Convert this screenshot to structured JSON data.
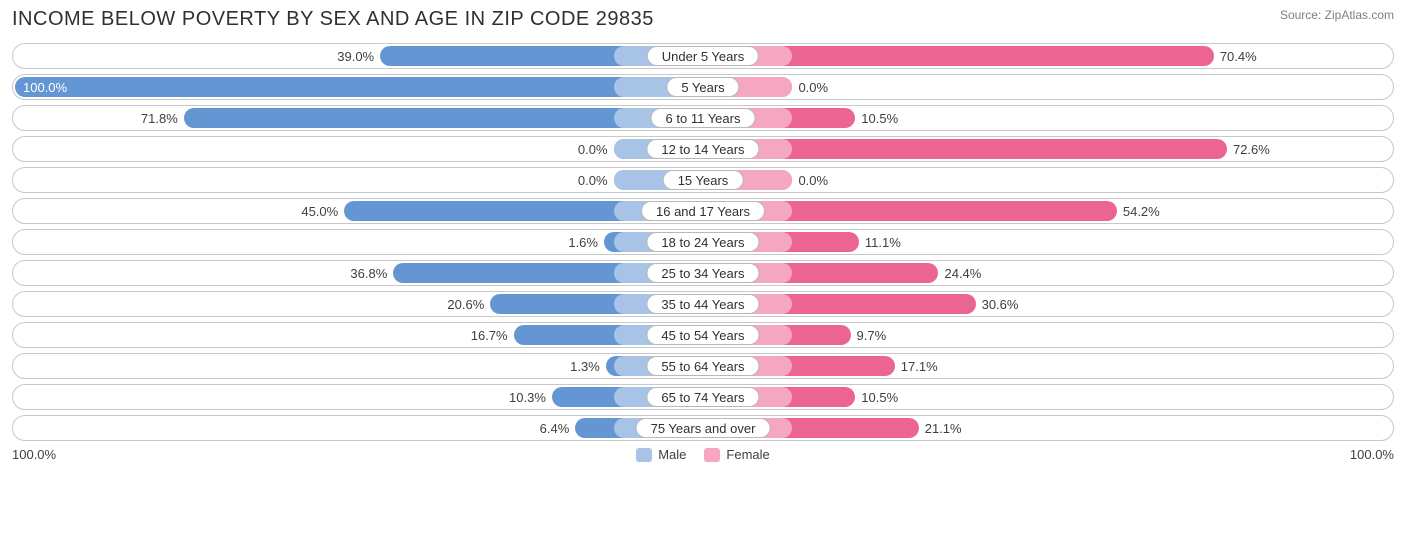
{
  "title": "INCOME BELOW POVERTY BY SEX AND AGE IN ZIP CODE 29835",
  "source": "Source: ZipAtlas.com",
  "axis_left": "100.0%",
  "axis_right": "100.0%",
  "legend": {
    "male": "Male",
    "female": "Female"
  },
  "colors": {
    "male_dark": "#6596d4",
    "male_light": "#a7c4e7",
    "female_dark": "#ec6492",
    "female_light": "#f5a6c0",
    "row_border": "#c8c8c8",
    "text": "#404040",
    "title_text": "#303030",
    "source_text": "#808080",
    "background": "#ffffff"
  },
  "chart": {
    "type": "diverging-bar",
    "base_inner_pct": 13,
    "label_inside_threshold": 85,
    "rows": [
      {
        "category": "Under 5 Years",
        "male": 39.0,
        "female": 70.4,
        "male_label": "39.0%",
        "female_label": "70.4%"
      },
      {
        "category": "5 Years",
        "male": 100.0,
        "female": 0.0,
        "male_label": "100.0%",
        "female_label": "0.0%"
      },
      {
        "category": "6 to 11 Years",
        "male": 71.8,
        "female": 10.5,
        "male_label": "71.8%",
        "female_label": "10.5%"
      },
      {
        "category": "12 to 14 Years",
        "male": 0.0,
        "female": 72.6,
        "male_label": "0.0%",
        "female_label": "72.6%"
      },
      {
        "category": "15 Years",
        "male": 0.0,
        "female": 0.0,
        "male_label": "0.0%",
        "female_label": "0.0%"
      },
      {
        "category": "16 and 17 Years",
        "male": 45.0,
        "female": 54.2,
        "male_label": "45.0%",
        "female_label": "54.2%"
      },
      {
        "category": "18 to 24 Years",
        "male": 1.6,
        "female": 11.1,
        "male_label": "1.6%",
        "female_label": "11.1%"
      },
      {
        "category": "25 to 34 Years",
        "male": 36.8,
        "female": 24.4,
        "male_label": "36.8%",
        "female_label": "24.4%"
      },
      {
        "category": "35 to 44 Years",
        "male": 20.6,
        "female": 30.6,
        "male_label": "20.6%",
        "female_label": "30.6%"
      },
      {
        "category": "45 to 54 Years",
        "male": 16.7,
        "female": 9.7,
        "male_label": "16.7%",
        "female_label": "9.7%"
      },
      {
        "category": "55 to 64 Years",
        "male": 1.3,
        "female": 17.1,
        "male_label": "1.3%",
        "female_label": "17.1%"
      },
      {
        "category": "65 to 74 Years",
        "male": 10.3,
        "female": 10.5,
        "male_label": "10.3%",
        "female_label": "10.5%"
      },
      {
        "category": "75 Years and over",
        "male": 6.4,
        "female": 21.1,
        "male_label": "6.4%",
        "female_label": "21.1%"
      }
    ]
  }
}
